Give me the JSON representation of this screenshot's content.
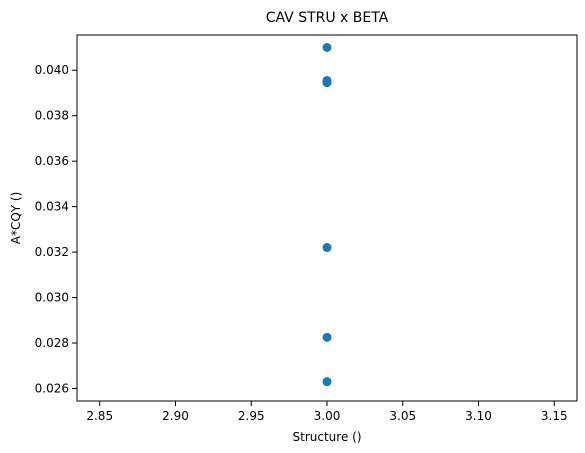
{
  "chart_data": {
    "type": "scatter",
    "title": "CAV STRU x BETA",
    "xlabel": "Structure ()",
    "ylabel": "A*CQY ()",
    "xlim": [
      2.835,
      3.165
    ],
    "ylim": [
      0.02545,
      0.04155
    ],
    "x_ticks": [
      2.85,
      2.9,
      2.95,
      3.0,
      3.05,
      3.1,
      3.15
    ],
    "x_tick_labels": [
      "2.85",
      "2.90",
      "2.95",
      "3.00",
      "3.05",
      "3.10",
      "3.15"
    ],
    "y_ticks": [
      0.026,
      0.028,
      0.03,
      0.032,
      0.034,
      0.036,
      0.038,
      0.04
    ],
    "y_tick_labels": [
      "0.026",
      "0.028",
      "0.030",
      "0.032",
      "0.034",
      "0.036",
      "0.038",
      "0.040"
    ],
    "grid": false,
    "legend": "none",
    "marker_color": "#1f77b4",
    "series": [
      {
        "points": [
          {
            "x": 3.0,
            "y": 0.041
          },
          {
            "x": 3.0,
            "y": 0.03955
          },
          {
            "x": 3.0,
            "y": 0.03945
          },
          {
            "x": 3.0,
            "y": 0.0322
          },
          {
            "x": 3.0,
            "y": 0.02825
          },
          {
            "x": 3.0,
            "y": 0.0263
          }
        ]
      }
    ]
  }
}
